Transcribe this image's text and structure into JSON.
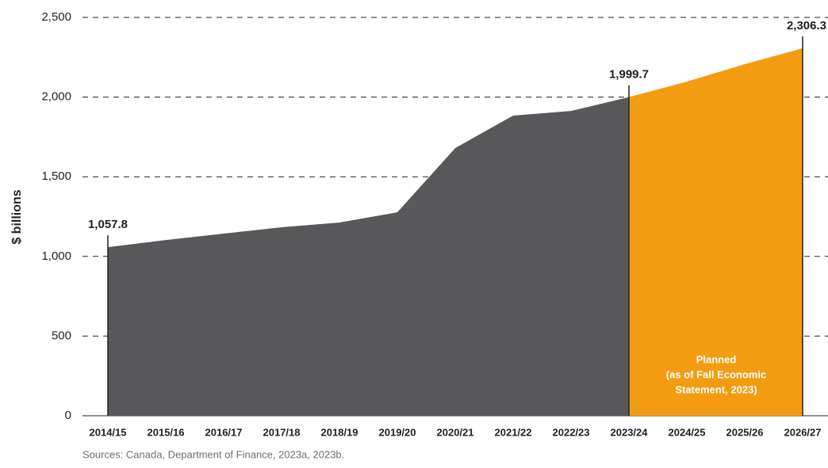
{
  "chart_data": {
    "type": "area",
    "ylabel": "$ billions",
    "source": "Sources: Canada, Department of Finance, 2023a, 2023b.",
    "categories": [
      "2014/15",
      "2015/16",
      "2016/17",
      "2017/18",
      "2018/19",
      "2019/20",
      "2020/21",
      "2021/22",
      "2022/23",
      "2023/24",
      "2024/25",
      "2025/26",
      "2026/27"
    ],
    "series": [
      {
        "color": "#58585a",
        "values": [
          1057.8,
          1103,
          1143,
          1183,
          1213,
          1277,
          1680,
          1884,
          1913,
          1999.7,
          null,
          null,
          null
        ],
        "value_labels": [
          "1,057.8",
          null,
          null,
          null,
          null,
          null,
          null,
          null,
          null,
          "1,999.7",
          null,
          null,
          null
        ]
      },
      {
        "color": "#f39c12",
        "values": [
          null,
          null,
          null,
          null,
          null,
          null,
          null,
          null,
          null,
          1999.7,
          2097,
          2207,
          2306.3
        ],
        "value_labels": [
          null,
          null,
          null,
          null,
          null,
          null,
          null,
          null,
          null,
          null,
          null,
          null,
          "2,306.3"
        ]
      }
    ],
    "annotation": [
      "Planned",
      "(as of Fall Economic",
      "Statement, 2023)"
    ],
    "ylim": [
      0,
      2500
    ],
    "yticks": [
      0,
      500,
      1000,
      1500,
      2000,
      2500
    ],
    "yticks_labels": [
      "0",
      "500",
      "1,000",
      "1,500",
      "2,000",
      "2,500"
    ],
    "grid": true
  }
}
